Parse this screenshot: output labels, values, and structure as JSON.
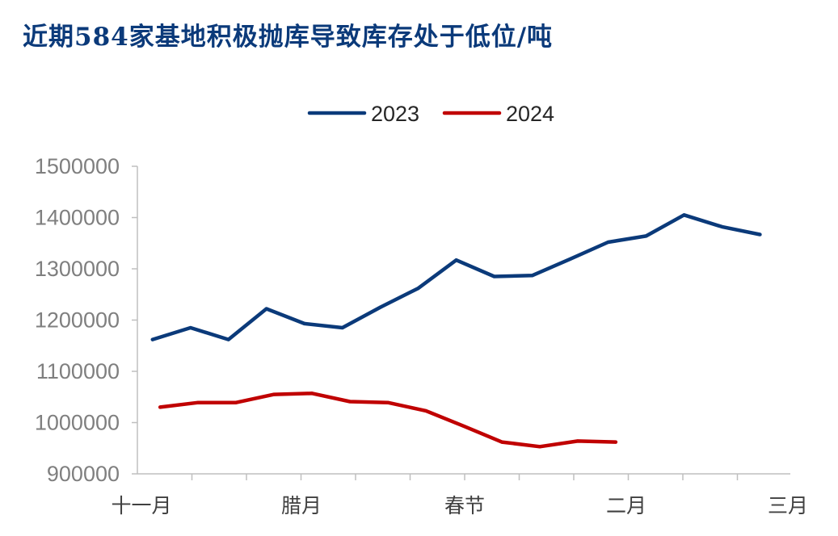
{
  "header": {
    "title": "近期584家基地积极抛库导致库存处于低位/吨"
  },
  "chart_data": {
    "type": "line",
    "title": "近期584家基地积极抛库导致库存处于低位/吨",
    "xlabel": "",
    "ylabel": "",
    "ylim": [
      900000,
      1500000
    ],
    "yticks": [
      1500000,
      1400000,
      1300000,
      1200000,
      1100000,
      1000000,
      900000
    ],
    "ytick_labels": [
      "1500000",
      "1400000",
      "1300000",
      "1200000",
      "1100000",
      "1000000",
      "900000"
    ],
    "categories": [
      "十一月",
      "腊月",
      "春节",
      "二月",
      "三月"
    ],
    "legend": "top-center",
    "grid": false,
    "series": [
      {
        "name": "2023",
        "color": "#0b3a7a",
        "x": [
          0.2,
          0.7,
          1.2,
          1.7,
          2.2,
          2.7,
          3.2,
          3.7,
          4.2,
          4.7,
          5.2,
          5.7,
          6.2,
          6.7,
          7.2,
          7.7,
          8.2
        ],
        "values": [
          1162000,
          1185000,
          1162000,
          1222000,
          1193000,
          1185000,
          1225000,
          1262000,
          1317000,
          1285000,
          1287000,
          1319000,
          1352000,
          1364000,
          1405000,
          1382000,
          1367000
        ]
      },
      {
        "name": "2024",
        "color": "#c00000",
        "x": [
          0.3,
          0.8,
          1.3,
          1.8,
          2.3,
          2.8,
          3.3,
          3.8,
          4.3,
          4.8,
          5.3,
          5.8,
          6.3
        ],
        "values": [
          1030000,
          1039000,
          1039000,
          1055000,
          1057000,
          1041000,
          1039000,
          1023000,
          993000,
          962000,
          953000,
          964000,
          962000
        ]
      }
    ]
  }
}
